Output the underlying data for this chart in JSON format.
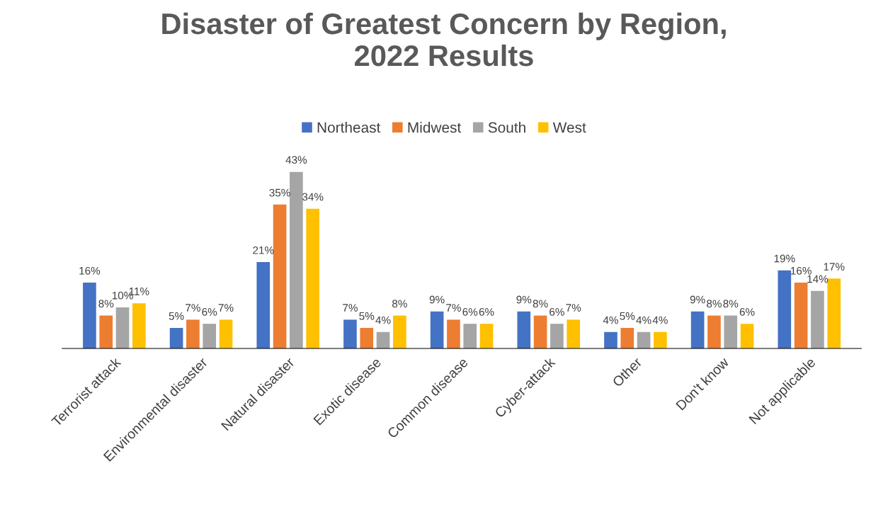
{
  "chart_data": {
    "type": "bar",
    "title": "Disaster of Greatest Concern by Region,\n2022 Results",
    "categories": [
      "Terrorist attack",
      "Environmental disaster",
      "Natural disaster",
      "Exotic disease",
      "Common disease",
      "Cyber-attack",
      "Other",
      "Don't know",
      "Not applicable"
    ],
    "series": [
      {
        "name": "Northeast",
        "color": "#4472c4",
        "values": [
          16,
          5,
          21,
          7,
          9,
          9,
          4,
          9,
          19
        ],
        "value_labels": [
          "16%",
          "5%",
          "21%",
          "7%",
          "9%",
          "9%",
          "4%",
          "9%",
          "19%"
        ]
      },
      {
        "name": "Midwest",
        "color": "#ed7d31",
        "values": [
          8,
          7,
          35,
          5,
          7,
          8,
          5,
          8,
          16
        ],
        "value_labels": [
          "8%",
          "7%",
          "35%",
          "5%",
          "7%",
          "8%",
          "5%",
          "8%",
          "16%"
        ]
      },
      {
        "name": "South",
        "color": "#a5a5a5",
        "values": [
          10,
          6,
          43,
          4,
          6,
          6,
          4,
          8,
          14
        ],
        "value_labels": [
          "10%",
          "6%",
          "43%",
          "4%",
          "6%",
          "6%",
          "4%",
          "8%",
          "14%"
        ]
      },
      {
        "name": "West",
        "color": "#ffc000",
        "values": [
          11,
          7,
          34,
          8,
          6,
          7,
          4,
          6,
          17
        ],
        "value_labels": [
          "11%",
          "7%",
          "34%",
          "8%",
          "6%",
          "7%",
          "4%",
          "6%",
          "17%"
        ]
      }
    ],
    "legend": "top",
    "grid": false,
    "tick_labels": "x"
  }
}
